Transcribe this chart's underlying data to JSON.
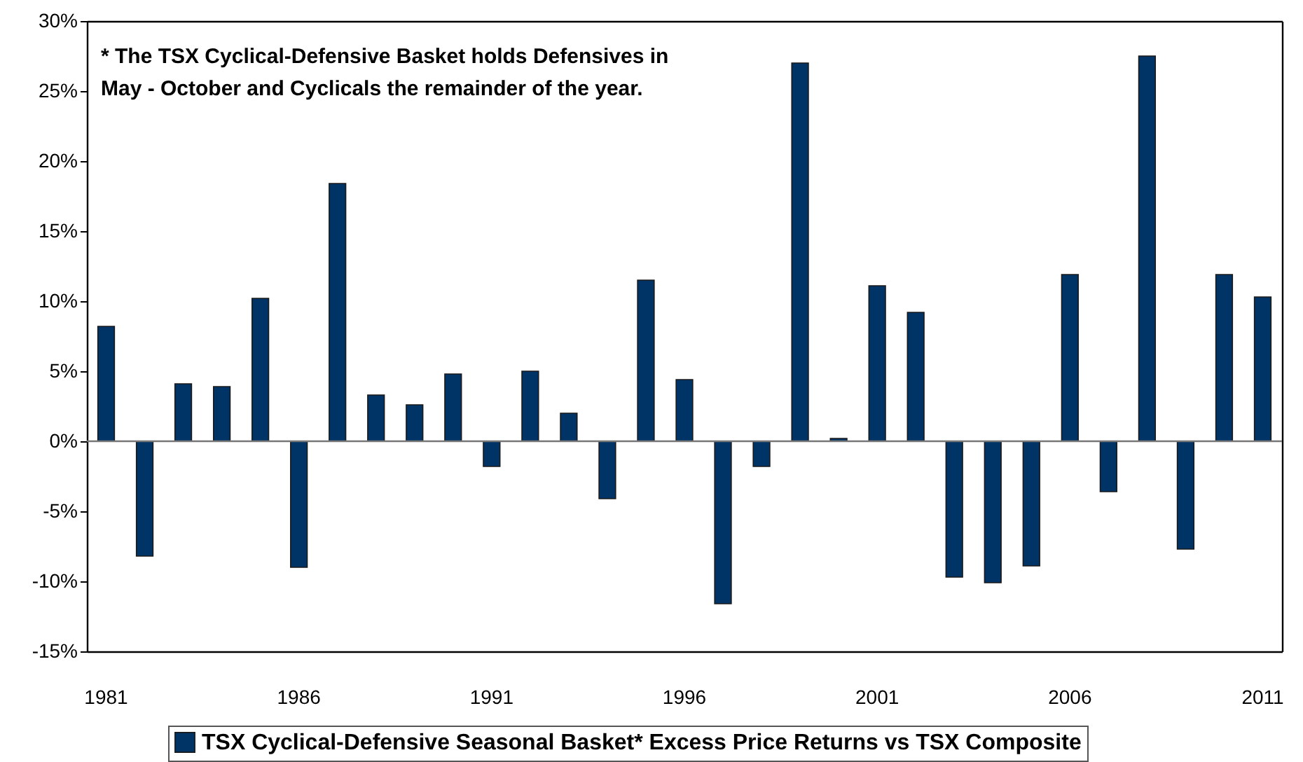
{
  "chart_data": {
    "type": "bar",
    "categories": [
      "1981",
      null,
      null,
      null,
      null,
      "1986",
      null,
      null,
      null,
      null,
      "1991",
      null,
      null,
      null,
      null,
      "1996",
      null,
      null,
      null,
      null,
      "2001",
      null,
      null,
      null,
      null,
      "2006",
      null,
      null,
      null,
      null,
      "2011"
    ],
    "series": [
      {
        "name": "TSX Cyclical-Defensive Seasonal Basket* Excess Price Returns vs TSX Composite",
        "color": "#003366",
        "values": [
          8.2,
          -8.2,
          4.1,
          3.9,
          10.2,
          -9.0,
          18.4,
          3.3,
          2.6,
          4.8,
          -1.8,
          5.0,
          2.0,
          -4.1,
          11.5,
          4.4,
          -11.6,
          -1.8,
          27.0,
          0.2,
          11.1,
          9.2,
          -9.7,
          -10.1,
          -8.9,
          11.9,
          -3.6,
          27.5,
          -7.7,
          11.9,
          10.3
        ]
      }
    ],
    "ylim": [
      -15,
      30
    ],
    "yticks": [
      {
        "value": 30,
        "label": "30%"
      },
      {
        "value": 25,
        "label": "25%"
      },
      {
        "value": 20,
        "label": "20%"
      },
      {
        "value": 15,
        "label": "15%"
      },
      {
        "value": 10,
        "label": "10%"
      },
      {
        "value": 5,
        "label": "5%"
      },
      {
        "value": 0,
        "label": "0%"
      },
      {
        "value": -5,
        "label": "-5%"
      },
      {
        "value": -10,
        "label": "-10%"
      },
      {
        "value": -15,
        "label": "-15%"
      }
    ],
    "annotations": [
      "* The TSX Cyclical-Defensive Basket holds Defensives in",
      "May - October and Cyclicals the remainder of the year."
    ],
    "legend": "bottom"
  }
}
